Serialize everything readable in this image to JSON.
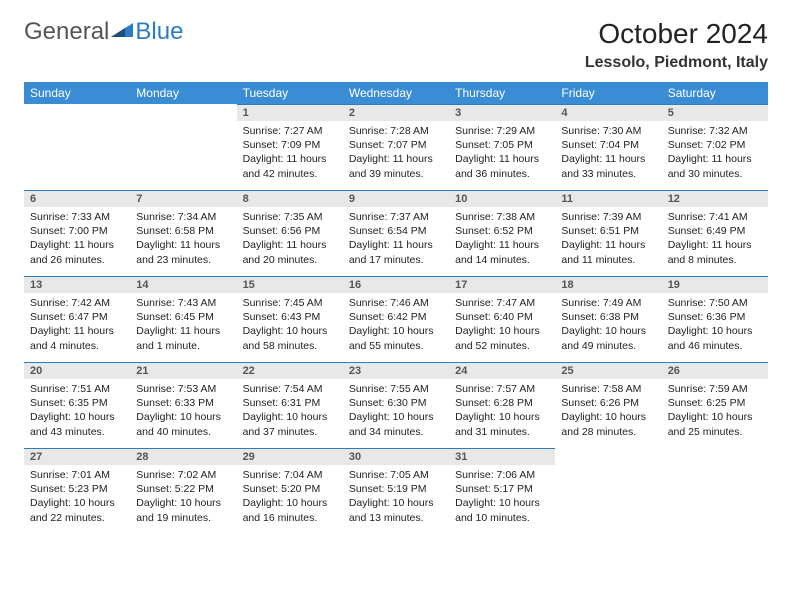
{
  "brand": {
    "part1": "General",
    "part2": "Blue"
  },
  "month_title": "October 2024",
  "location": "Lessolo, Piedmont, Italy",
  "colors": {
    "header_bg": "#3a8dd4",
    "daynum_bg": "#e8e8e8",
    "daynum_border": "#2b7cc4",
    "logo_blue": "#2b7cc4",
    "logo_gray": "#555555"
  },
  "day_headers": [
    "Sunday",
    "Monday",
    "Tuesday",
    "Wednesday",
    "Thursday",
    "Friday",
    "Saturday"
  ],
  "weeks": [
    [
      null,
      null,
      {
        "n": "1",
        "sr": "7:27 AM",
        "ss": "7:09 PM",
        "dl": "11 hours and 42 minutes."
      },
      {
        "n": "2",
        "sr": "7:28 AM",
        "ss": "7:07 PM",
        "dl": "11 hours and 39 minutes."
      },
      {
        "n": "3",
        "sr": "7:29 AM",
        "ss": "7:05 PM",
        "dl": "11 hours and 36 minutes."
      },
      {
        "n": "4",
        "sr": "7:30 AM",
        "ss": "7:04 PM",
        "dl": "11 hours and 33 minutes."
      },
      {
        "n": "5",
        "sr": "7:32 AM",
        "ss": "7:02 PM",
        "dl": "11 hours and 30 minutes."
      }
    ],
    [
      {
        "n": "6",
        "sr": "7:33 AM",
        "ss": "7:00 PM",
        "dl": "11 hours and 26 minutes."
      },
      {
        "n": "7",
        "sr": "7:34 AM",
        "ss": "6:58 PM",
        "dl": "11 hours and 23 minutes."
      },
      {
        "n": "8",
        "sr": "7:35 AM",
        "ss": "6:56 PM",
        "dl": "11 hours and 20 minutes."
      },
      {
        "n": "9",
        "sr": "7:37 AM",
        "ss": "6:54 PM",
        "dl": "11 hours and 17 minutes."
      },
      {
        "n": "10",
        "sr": "7:38 AM",
        "ss": "6:52 PM",
        "dl": "11 hours and 14 minutes."
      },
      {
        "n": "11",
        "sr": "7:39 AM",
        "ss": "6:51 PM",
        "dl": "11 hours and 11 minutes."
      },
      {
        "n": "12",
        "sr": "7:41 AM",
        "ss": "6:49 PM",
        "dl": "11 hours and 8 minutes."
      }
    ],
    [
      {
        "n": "13",
        "sr": "7:42 AM",
        "ss": "6:47 PM",
        "dl": "11 hours and 4 minutes."
      },
      {
        "n": "14",
        "sr": "7:43 AM",
        "ss": "6:45 PM",
        "dl": "11 hours and 1 minute."
      },
      {
        "n": "15",
        "sr": "7:45 AM",
        "ss": "6:43 PM",
        "dl": "10 hours and 58 minutes."
      },
      {
        "n": "16",
        "sr": "7:46 AM",
        "ss": "6:42 PM",
        "dl": "10 hours and 55 minutes."
      },
      {
        "n": "17",
        "sr": "7:47 AM",
        "ss": "6:40 PM",
        "dl": "10 hours and 52 minutes."
      },
      {
        "n": "18",
        "sr": "7:49 AM",
        "ss": "6:38 PM",
        "dl": "10 hours and 49 minutes."
      },
      {
        "n": "19",
        "sr": "7:50 AM",
        "ss": "6:36 PM",
        "dl": "10 hours and 46 minutes."
      }
    ],
    [
      {
        "n": "20",
        "sr": "7:51 AM",
        "ss": "6:35 PM",
        "dl": "10 hours and 43 minutes."
      },
      {
        "n": "21",
        "sr": "7:53 AM",
        "ss": "6:33 PM",
        "dl": "10 hours and 40 minutes."
      },
      {
        "n": "22",
        "sr": "7:54 AM",
        "ss": "6:31 PM",
        "dl": "10 hours and 37 minutes."
      },
      {
        "n": "23",
        "sr": "7:55 AM",
        "ss": "6:30 PM",
        "dl": "10 hours and 34 minutes."
      },
      {
        "n": "24",
        "sr": "7:57 AM",
        "ss": "6:28 PM",
        "dl": "10 hours and 31 minutes."
      },
      {
        "n": "25",
        "sr": "7:58 AM",
        "ss": "6:26 PM",
        "dl": "10 hours and 28 minutes."
      },
      {
        "n": "26",
        "sr": "7:59 AM",
        "ss": "6:25 PM",
        "dl": "10 hours and 25 minutes."
      }
    ],
    [
      {
        "n": "27",
        "sr": "7:01 AM",
        "ss": "5:23 PM",
        "dl": "10 hours and 22 minutes."
      },
      {
        "n": "28",
        "sr": "7:02 AM",
        "ss": "5:22 PM",
        "dl": "10 hours and 19 minutes."
      },
      {
        "n": "29",
        "sr": "7:04 AM",
        "ss": "5:20 PM",
        "dl": "10 hours and 16 minutes."
      },
      {
        "n": "30",
        "sr": "7:05 AM",
        "ss": "5:19 PM",
        "dl": "10 hours and 13 minutes."
      },
      {
        "n": "31",
        "sr": "7:06 AM",
        "ss": "5:17 PM",
        "dl": "10 hours and 10 minutes."
      },
      null,
      null
    ]
  ],
  "labels": {
    "sunrise": "Sunrise:",
    "sunset": "Sunset:",
    "daylight": "Daylight:"
  }
}
